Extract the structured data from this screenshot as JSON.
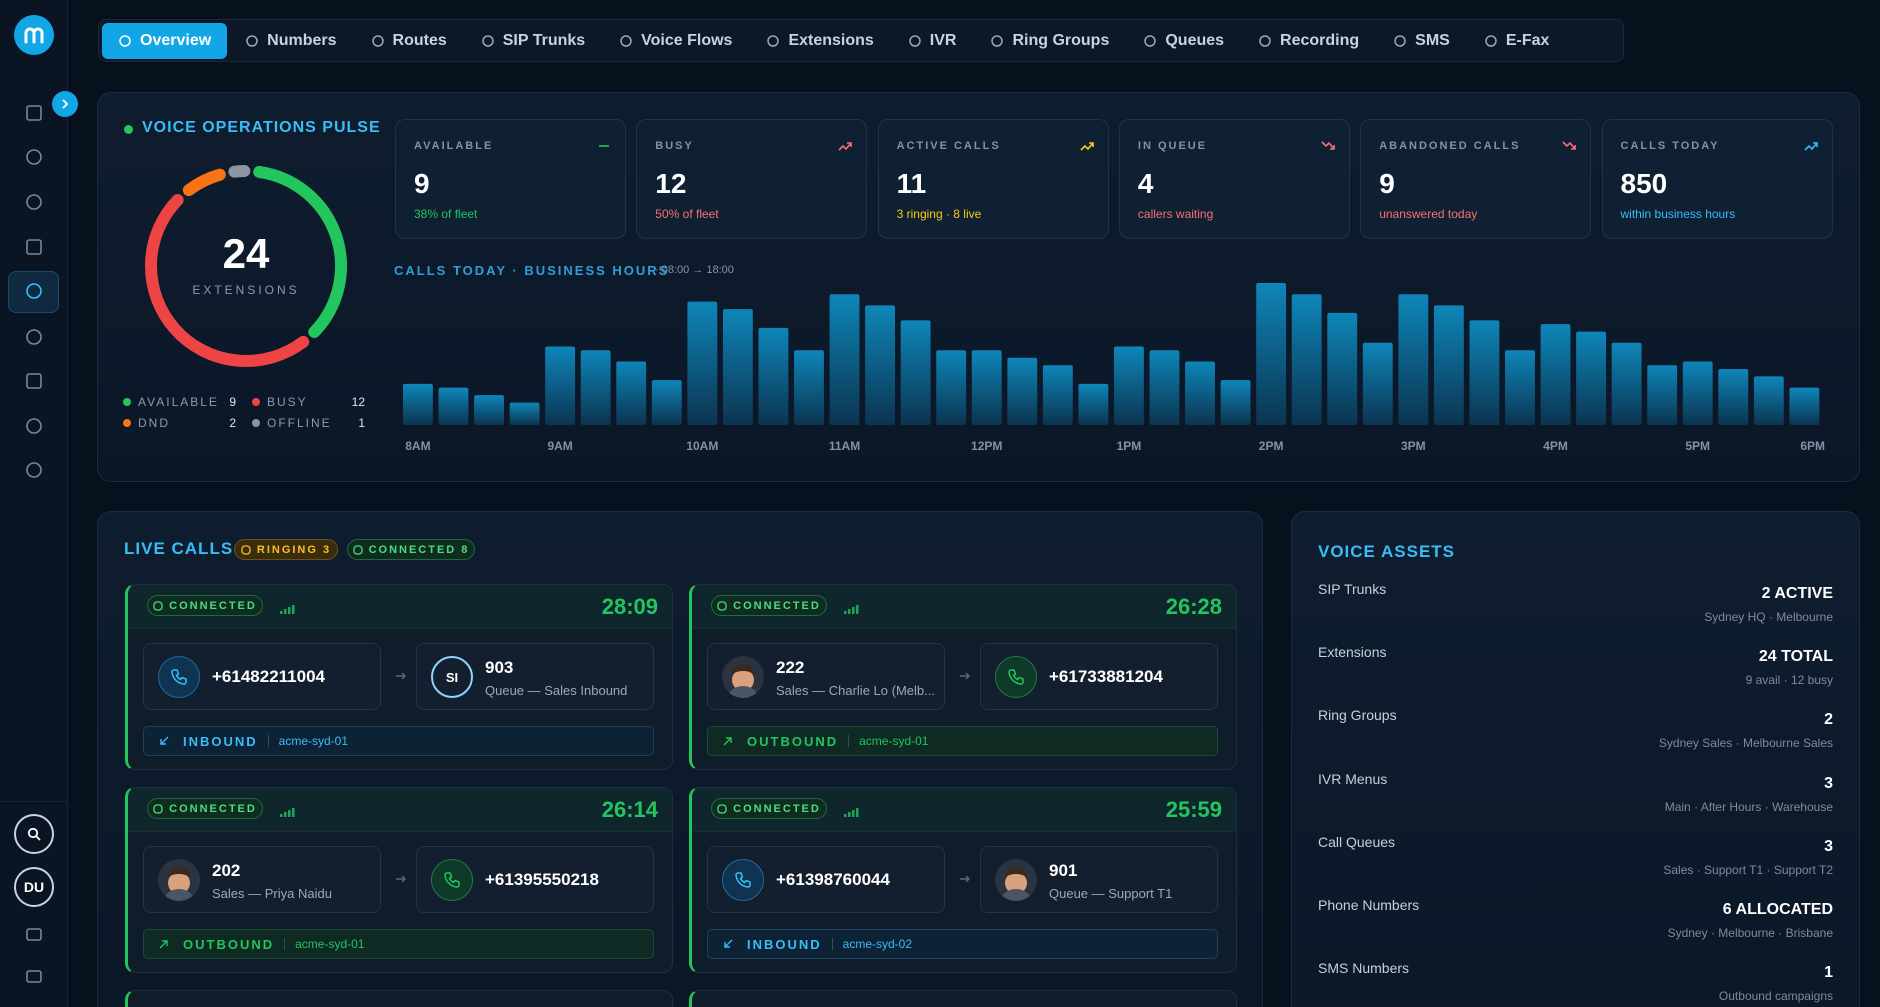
{
  "nav": {
    "tabs": [
      "Overview",
      "Numbers",
      "Routes",
      "SIP Trunks",
      "Voice Flows",
      "Extensions",
      "IVR",
      "Ring Groups",
      "Queues",
      "Recording",
      "SMS",
      "E-Fax"
    ],
    "active": 0
  },
  "sidebar": {
    "user": "DU"
  },
  "pulse": {
    "title": "VOICE OPERATIONS PULSE",
    "total": 24,
    "total_label": "EXTENSIONS",
    "segments": [
      {
        "name": "AVAILABLE",
        "value": 9,
        "color": "#22c55e"
      },
      {
        "name": "BUSY",
        "value": 12,
        "color": "#ef4444"
      },
      {
        "name": "DND",
        "value": 2,
        "color": "#f97316"
      },
      {
        "name": "OFFLINE",
        "value": 1,
        "color": "#8b95a3"
      }
    ]
  },
  "stats": [
    {
      "label": "AVAILABLE",
      "value": 9,
      "sub": "38% of fleet",
      "color": "#22c55e",
      "trend": "flat"
    },
    {
      "label": "BUSY",
      "value": 12,
      "sub": "50% of fleet",
      "color": "#f87171",
      "trend": "up"
    },
    {
      "label": "ACTIVE CALLS",
      "value": 11,
      "sub": "3 ringing · 8 live",
      "color": "#facc15",
      "trend": "up"
    },
    {
      "label": "IN QUEUE",
      "value": 4,
      "sub": "callers waiting",
      "color": "#f87171",
      "trend": "down"
    },
    {
      "label": "ABANDONED CALLS",
      "value": 9,
      "sub": "unanswered today",
      "color": "#f87171",
      "trend": "down"
    },
    {
      "label": "CALLS TODAY",
      "value": 850,
      "sub": "within business hours",
      "color": "#38bdf8",
      "trend": "up"
    }
  ],
  "chart": {
    "type": "bar",
    "title": "CALLS TODAY · BUSINESS HOURS",
    "subtitle": "· 08:00 → 18:00",
    "x_labels": [
      "8AM",
      "9AM",
      "10AM",
      "11AM",
      "12PM",
      "1PM",
      "2PM",
      "3PM",
      "4PM",
      "5PM",
      "6PM"
    ],
    "values": [
      11,
      10,
      8,
      6,
      21,
      20,
      17,
      12,
      33,
      31,
      26,
      20,
      35,
      32,
      28,
      20,
      20,
      18,
      16,
      11,
      21,
      20,
      17,
      12,
      38,
      35,
      30,
      22,
      35,
      32,
      28,
      20,
      27,
      25,
      22,
      16,
      17,
      15,
      13,
      10
    ],
    "color": "#0e86b9"
  },
  "live_calls": {
    "title": "LIVE CALLS",
    "badges": [
      "RINGING 3",
      "CONNECTED 8"
    ],
    "calls": [
      {
        "status": "CONNECTED",
        "duration": "28:09",
        "left": {
          "icon": "inbound",
          "number": "+61482211004"
        },
        "right": {
          "icon": "initials",
          "initials": "SI",
          "number": "903",
          "sub": "Queue — Sales Inbound"
        },
        "direction": "INBOUND",
        "trunk": "acme-syd-01"
      },
      {
        "status": "CONNECTED",
        "duration": "26:28",
        "left": {
          "icon": "avatar",
          "number": "222",
          "sub": "Sales — Charlie Lo (Melb..."
        },
        "right": {
          "icon": "outbound",
          "number": "+61733881204"
        },
        "direction": "OUTBOUND",
        "trunk": "acme-syd-01"
      },
      {
        "status": "CONNECTED",
        "duration": "26:14",
        "left": {
          "icon": "avatar",
          "number": "202",
          "sub": "Sales — Priya Naidu"
        },
        "right": {
          "icon": "outbound",
          "number": "+61395550218"
        },
        "direction": "OUTBOUND",
        "trunk": "acme-syd-01"
      },
      {
        "status": "CONNECTED",
        "duration": "25:59",
        "left": {
          "icon": "inbound",
          "number": "+61398760044"
        },
        "right": {
          "icon": "avatar",
          "number": "901",
          "sub": "Queue — Support T1"
        },
        "direction": "INBOUND",
        "trunk": "acme-syd-02"
      }
    ]
  },
  "assets": {
    "title": "VOICE ASSETS",
    "items": [
      {
        "name": "SIP Trunks",
        "value": "2 ACTIVE",
        "sub": "Sydney HQ · Melbourne"
      },
      {
        "name": "Extensions",
        "value": "24 TOTAL",
        "sub": "9 avail · 12 busy"
      },
      {
        "name": "Ring Groups",
        "value": "2",
        "sub": "Sydney Sales · Melbourne Sales"
      },
      {
        "name": "IVR Menus",
        "value": "3",
        "sub": "Main · After Hours · Warehouse"
      },
      {
        "name": "Call Queues",
        "value": "3",
        "sub": "Sales · Support T1 · Support T2"
      },
      {
        "name": "Phone Numbers",
        "value": "6 ALLOCATED",
        "sub": "Sydney · Melbourne · Brisbane"
      },
      {
        "name": "SMS Numbers",
        "value": "1",
        "sub": "Outbound campaigns"
      }
    ]
  }
}
